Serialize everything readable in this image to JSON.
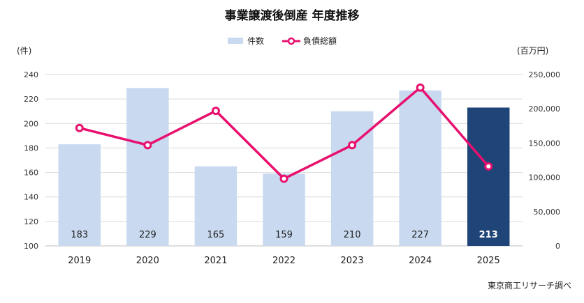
{
  "chart_data": {
    "type": "bar",
    "title": "事業譲渡後倒産  年度推移",
    "categories": [
      "2019",
      "2020",
      "2021",
      "2022",
      "2023",
      "2024",
      "2025"
    ],
    "series": [
      {
        "name": "件数",
        "type": "bar",
        "axis": "left",
        "values": [
          183,
          229,
          165,
          159,
          210,
          227,
          213
        ],
        "data_labels": [
          "183",
          "229",
          "165",
          "159",
          "210",
          "227",
          "213"
        ],
        "color": "#c9daf0",
        "highlight_color": "#1f4477",
        "highlight_index": 6
      },
      {
        "name": "負債総額",
        "type": "line",
        "axis": "right",
        "values": [
          172000,
          147000,
          197000,
          98000,
          147000,
          231000,
          116000
        ],
        "color": "#e8106e"
      }
    ],
    "y_left": {
      "label": "(件)",
      "range": [
        100,
        240
      ],
      "ticks": [
        "100",
        "120",
        "140",
        "160",
        "180",
        "200",
        "220",
        "240"
      ]
    },
    "y_right": {
      "label": "(百万円)",
      "range": [
        0,
        250000
      ],
      "ticks": [
        "0",
        "50,000",
        "100,000",
        "150,000",
        "200,000",
        "250,000"
      ]
    },
    "grid": true,
    "legend_position": "top"
  },
  "source": "東京商工リサーチ調べ"
}
